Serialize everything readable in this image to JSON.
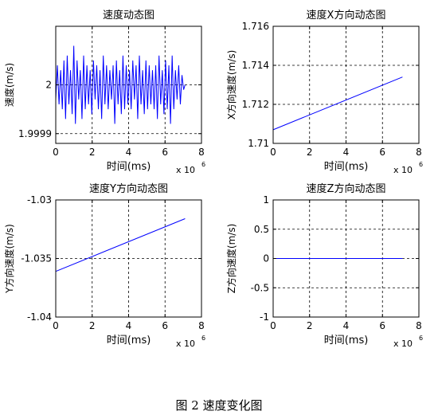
{
  "figure_caption": "图 2  速度变化图",
  "chart_data": [
    {
      "type": "line",
      "title": "速度动态图",
      "xlabel": "时间(ms)",
      "ylabel": "速度(m/s)",
      "x_multiplier": "x 10",
      "x_multiplier_exp": "6",
      "xlim": [
        0,
        8
      ],
      "ylim": [
        1.99988,
        2.00012
      ],
      "xticks": [
        0,
        2,
        4,
        6,
        8
      ],
      "xtick_labels": [
        "0",
        "2",
        "4",
        "6",
        "8"
      ],
      "yticks": [
        1.9999,
        2.0
      ],
      "ytick_labels": [
        "1.9999",
        "2"
      ],
      "grid": true,
      "series": [
        {
          "color": "#0000ff",
          "x": [
            0,
            0.09,
            0.18,
            0.27,
            0.36,
            0.45,
            0.54,
            0.63,
            0.72,
            0.81,
            0.9,
            0.99,
            1.08,
            1.17,
            1.26,
            1.35,
            1.44,
            1.53,
            1.62,
            1.71,
            1.8,
            1.89,
            1.98,
            2.07,
            2.16,
            2.25,
            2.34,
            2.43,
            2.52,
            2.61,
            2.7,
            2.79,
            2.88,
            2.97,
            3.06,
            3.15,
            3.24,
            3.33,
            3.42,
            3.51,
            3.6,
            3.69,
            3.78,
            3.87,
            3.96,
            4.05,
            4.14,
            4.23,
            4.32,
            4.41,
            4.5,
            4.59,
            4.68,
            4.77,
            4.86,
            4.95,
            5.04,
            5.13,
            5.22,
            5.31,
            5.4,
            5.49,
            5.58,
            5.67,
            5.76,
            5.85,
            5.94,
            6.03,
            6.12,
            6.21,
            6.3,
            6.39,
            6.48,
            6.57,
            6.66,
            6.75,
            6.84,
            6.93,
            7.02,
            7.1
          ],
          "values": [
            1.99997,
            2.00004,
            1.99996,
            2.00003,
            1.99995,
            2.00005,
            1.99993,
            2.00006,
            1.99996,
            2.00003,
            1.99994,
            2.00008,
            1.99992,
            2.00005,
            1.99997,
            2.00003,
            1.99993,
            2.00006,
            1.99995,
            2.00004,
            1.99996,
            2.00003,
            1.99994,
            2.00005,
            1.99997,
            2.00004,
            1.99995,
            2.00003,
            1.99993,
            2.00006,
            1.99996,
            2.00004,
            1.99995,
            2.00003,
            1.99997,
            2.00004,
            1.99992,
            2.00005,
            1.99996,
            2.00003,
            1.99994,
            2.00006,
            1.99995,
            2.00004,
            1.99996,
            2.00003,
            1.99995,
            2.00005,
            1.99997,
            2.00004,
            1.99993,
            2.00006,
            1.99996,
            2.00003,
            1.99994,
            2.00005,
            1.99995,
            2.00004,
            1.99996,
            2.00003,
            1.99995,
            2.00004,
            1.99993,
            2.00006,
            1.99996,
            2.00003,
            1.99994,
            2.00005,
            1.99995,
            2.00004,
            1.99992,
            2.00006,
            1.99995,
            2.00003,
            1.99997,
            2.00004,
            1.99996,
            2.00002,
            1.99999,
            2.0
          ]
        }
      ]
    },
    {
      "type": "line",
      "title": "速度X方向动态图",
      "xlabel": "时间(ms)",
      "ylabel": "X方向速度(m/s)",
      "x_multiplier": "x 10",
      "x_multiplier_exp": "6",
      "xlim": [
        0,
        8
      ],
      "ylim": [
        1.71,
        1.716
      ],
      "xticks": [
        0,
        2,
        4,
        6,
        8
      ],
      "xtick_labels": [
        "0",
        "2",
        "4",
        "6",
        "8"
      ],
      "yticks": [
        1.71,
        1.712,
        1.714,
        1.716
      ],
      "ytick_labels": [
        "1.71",
        "1.712",
        "1.714",
        "1.716"
      ],
      "grid": true,
      "series": [
        {
          "color": "#0000ff",
          "x": [
            0,
            7.1
          ],
          "values": [
            1.7107,
            1.7134
          ]
        }
      ]
    },
    {
      "type": "line",
      "title": "速度Y方向动态图",
      "xlabel": "时间(ms)",
      "ylabel": "Y方向速度(m/s)",
      "x_multiplier": "x 10",
      "x_multiplier_exp": "6",
      "xlim": [
        0,
        8
      ],
      "ylim": [
        -1.04,
        -1.03
      ],
      "xticks": [
        0,
        2,
        4,
        6,
        8
      ],
      "xtick_labels": [
        "0",
        "2",
        "4",
        "6",
        "8"
      ],
      "yticks": [
        -1.04,
        -1.035,
        -1.03
      ],
      "ytick_labels": [
        "-1.04",
        "-1.035",
        "-1.03"
      ],
      "grid": true,
      "series": [
        {
          "color": "#0000ff",
          "x": [
            0,
            7.1
          ],
          "values": [
            -1.0361,
            -1.0316
          ]
        }
      ]
    },
    {
      "type": "line",
      "title": "速度Z方向动态图",
      "xlabel": "时间(ms)",
      "ylabel": "Z方向速度(m/s)",
      "x_multiplier": "x 10",
      "x_multiplier_exp": "6",
      "xlim": [
        0,
        8
      ],
      "ylim": [
        -1,
        1
      ],
      "xticks": [
        0,
        2,
        4,
        6,
        8
      ],
      "xtick_labels": [
        "0",
        "2",
        "4",
        "6",
        "8"
      ],
      "yticks": [
        -1,
        -0.5,
        0,
        0.5,
        1
      ],
      "ytick_labels": [
        "-1",
        "-0.5",
        "0",
        "0.5",
        "1"
      ],
      "grid": true,
      "series": [
        {
          "color": "#0000ff",
          "x": [
            0,
            7.1
          ],
          "values": [
            0,
            0
          ]
        }
      ]
    }
  ]
}
